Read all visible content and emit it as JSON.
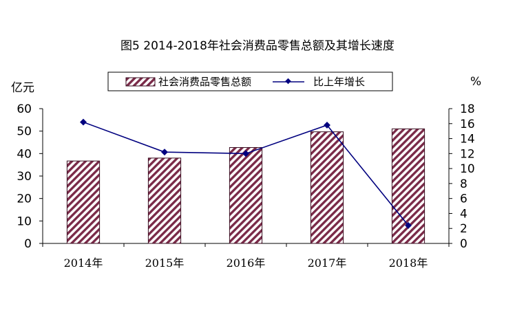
{
  "chart_data": {
    "type": "bar+line",
    "title": "图5  2014-2018年社会消费品零售总额及其增长速度",
    "categories": [
      "2014年",
      "2015年",
      "2016年",
      "2017年",
      "2018年"
    ],
    "series": [
      {
        "name": "社会消费品零售总额",
        "type": "bar",
        "axis": "left",
        "values": [
          36.7,
          38.0,
          42.7,
          49.7,
          51.0
        ]
      },
      {
        "name": "比上年增长",
        "type": "line",
        "axis": "right",
        "values": [
          16.2,
          12.2,
          12.0,
          15.8,
          2.4
        ]
      }
    ],
    "y_left": {
      "label": "亿元",
      "range": [
        0,
        60
      ],
      "ticks": [
        "0",
        "10",
        "20",
        "30",
        "40",
        "50",
        "60"
      ]
    },
    "y_right": {
      "label": "%",
      "range": [
        0,
        18
      ],
      "ticks": [
        "0",
        "2",
        "4",
        "6",
        "8",
        "10",
        "12",
        "14",
        "16",
        "18"
      ]
    },
    "legend_position": "top-center",
    "colors": {
      "bar_hatch": "#7a2a48",
      "line": "#00007f"
    }
  }
}
